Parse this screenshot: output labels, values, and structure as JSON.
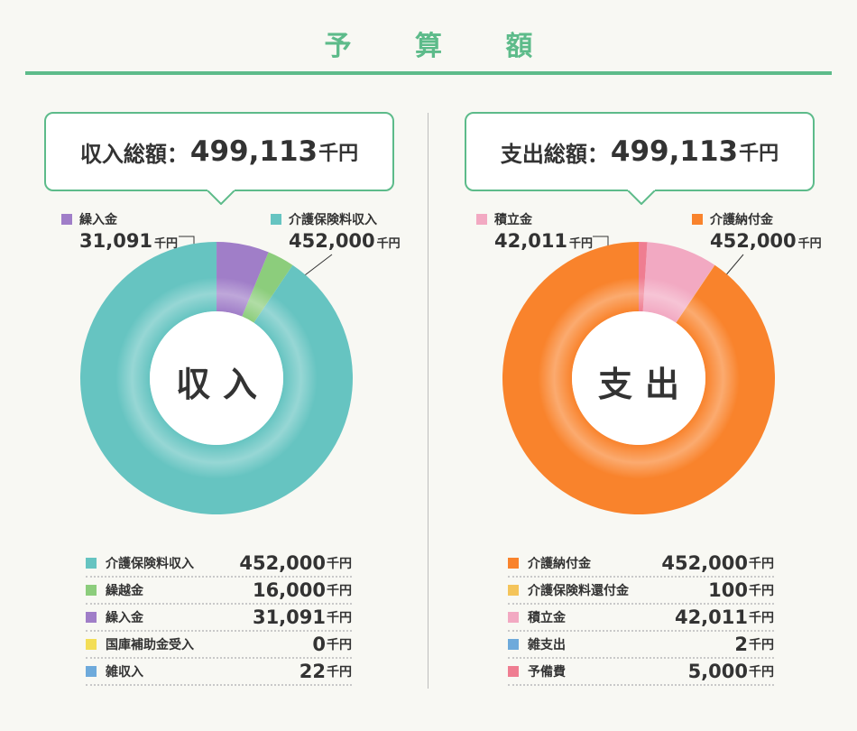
{
  "page_title": "予 算 額",
  "income": {
    "total_label": "収入総額：",
    "total_value": "499,113",
    "total_unit": "千円",
    "center": "収入",
    "callouts": [
      {
        "name": "繰入金",
        "value": "31,091",
        "unit": "千円",
        "color": "#a07ec8"
      },
      {
        "name": "介護保険料収入",
        "value": "452,000",
        "unit": "千円",
        "color": "#66c4c1"
      }
    ],
    "items": [
      {
        "name": "介護保険料収入",
        "value": "452,000",
        "unit": "千円",
        "color": "#66c4c1"
      },
      {
        "name": "繰越金",
        "value": "16,000",
        "unit": "千円",
        "color": "#8ccd7c"
      },
      {
        "name": "繰入金",
        "value": "31,091",
        "unit": "千円",
        "color": "#a07ec8"
      },
      {
        "name": "国庫補助金受入",
        "value": "0",
        "unit": "千円",
        "color": "#f3de57"
      },
      {
        "name": "雑収入",
        "value": "22",
        "unit": "千円",
        "color": "#6eaadb"
      }
    ]
  },
  "expense": {
    "total_label": "支出総額：",
    "total_value": "499,113",
    "total_unit": "千円",
    "center": "支出",
    "callouts": [
      {
        "name": "積立金",
        "value": "42,011",
        "unit": "千円",
        "color": "#f2a9c2"
      },
      {
        "name": "介護納付金",
        "value": "452,000",
        "unit": "千円",
        "color": "#f9832c"
      }
    ],
    "items": [
      {
        "name": "介護納付金",
        "value": "452,000",
        "unit": "千円",
        "color": "#f9832c"
      },
      {
        "name": "介護保険料還付金",
        "value": "100",
        "unit": "千円",
        "color": "#f4c45a"
      },
      {
        "name": "積立金",
        "value": "42,011",
        "unit": "千円",
        "color": "#f2a9c2"
      },
      {
        "name": "雑支出",
        "value": "2",
        "unit": "千円",
        "color": "#6eaadb"
      },
      {
        "name": "予備費",
        "value": "5,000",
        "unit": "千円",
        "color": "#ef7d91"
      }
    ]
  },
  "chart_data": [
    {
      "type": "pie",
      "categories": [
        "介護保険料収入",
        "繰越金",
        "繰入金",
        "国庫補助金受入",
        "雑収入"
      ],
      "values": [
        452000,
        16000,
        31091,
        0,
        22
      ],
      "colors": [
        "#66c4c1",
        "#8ccd7c",
        "#a07ec8",
        "#f3de57",
        "#6eaadb"
      ]
    },
    {
      "type": "pie",
      "categories": [
        "介護納付金",
        "介護保険料還付金",
        "積立金",
        "雑支出",
        "予備費"
      ],
      "values": [
        452000,
        100,
        42011,
        2,
        5000
      ],
      "colors": [
        "#f9832c",
        "#f4c45a",
        "#f2a9c2",
        "#6eaadb",
        "#ef7d91"
      ]
    }
  ]
}
